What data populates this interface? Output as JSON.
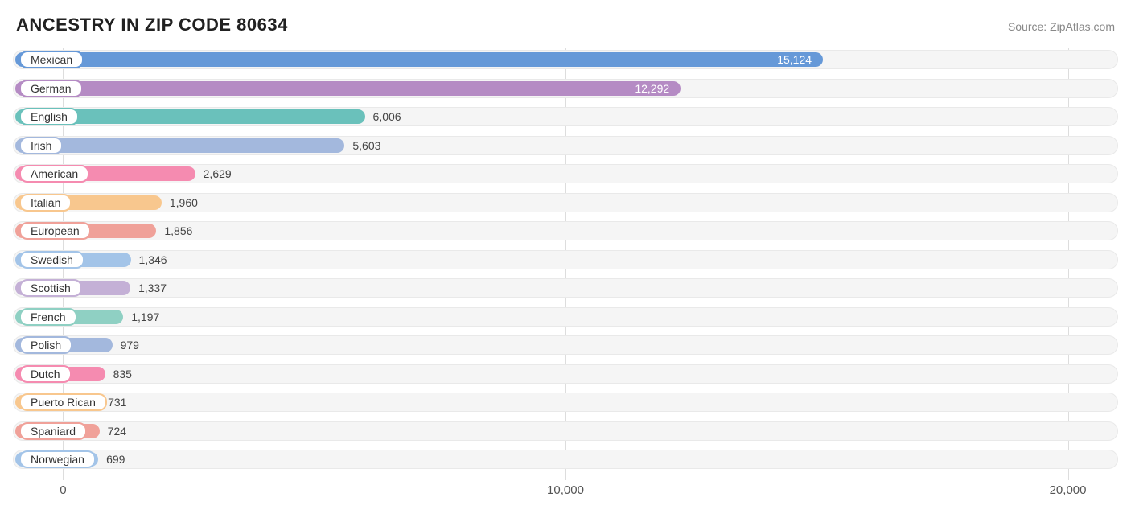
{
  "header": {
    "title": "ANCESTRY IN ZIP CODE 80634",
    "source": "Source: ZipAtlas.com"
  },
  "chart": {
    "type": "bar-horizontal",
    "background_color": "#ffffff",
    "track_color": "#f5f5f5",
    "track_border": "#e9e9e9",
    "grid_color": "#dddddd",
    "title_fontsize": 22,
    "label_fontsize": 14,
    "tick_fontsize": 15,
    "value_color_outside": "#444444",
    "value_color_inside": "#ffffff",
    "xlim": [
      -1000,
      21000
    ],
    "xticks": [
      {
        "value": 0,
        "label": "0"
      },
      {
        "value": 10000,
        "label": "10,000"
      },
      {
        "value": 20000,
        "label": "20,000"
      }
    ],
    "bars": [
      {
        "label": "Mexican",
        "value": 15124,
        "display": "15,124",
        "color": "#6699d8",
        "value_inside": true
      },
      {
        "label": "German",
        "value": 12292,
        "display": "12,292",
        "color": "#b58bc4",
        "value_inside": true
      },
      {
        "label": "English",
        "value": 6006,
        "display": "6,006",
        "color": "#6ac1bb",
        "value_inside": false
      },
      {
        "label": "Irish",
        "value": 5603,
        "display": "5,603",
        "color": "#a3b8dd",
        "value_inside": false
      },
      {
        "label": "American",
        "value": 2629,
        "display": "2,629",
        "color": "#f58bb0",
        "value_inside": false
      },
      {
        "label": "Italian",
        "value": 1960,
        "display": "1,960",
        "color": "#f8c78e",
        "value_inside": false
      },
      {
        "label": "European",
        "value": 1856,
        "display": "1,856",
        "color": "#f0a199",
        "value_inside": false
      },
      {
        "label": "Swedish",
        "value": 1346,
        "display": "1,346",
        "color": "#a3c4e8",
        "value_inside": false
      },
      {
        "label": "Scottish",
        "value": 1337,
        "display": "1,337",
        "color": "#c4b0d6",
        "value_inside": false
      },
      {
        "label": "French",
        "value": 1197,
        "display": "1,197",
        "color": "#8fd0c3",
        "value_inside": false
      },
      {
        "label": "Polish",
        "value": 979,
        "display": "979",
        "color": "#a3b8dd",
        "value_inside": false
      },
      {
        "label": "Dutch",
        "value": 835,
        "display": "835",
        "color": "#f58bb0",
        "value_inside": false
      },
      {
        "label": "Puerto Rican",
        "value": 731,
        "display": "731",
        "color": "#f8c78e",
        "value_inside": false
      },
      {
        "label": "Spaniard",
        "value": 724,
        "display": "724",
        "color": "#f0a199",
        "value_inside": false
      },
      {
        "label": "Norwegian",
        "value": 699,
        "display": "699",
        "color": "#a3c4e8",
        "value_inside": false
      }
    ]
  }
}
